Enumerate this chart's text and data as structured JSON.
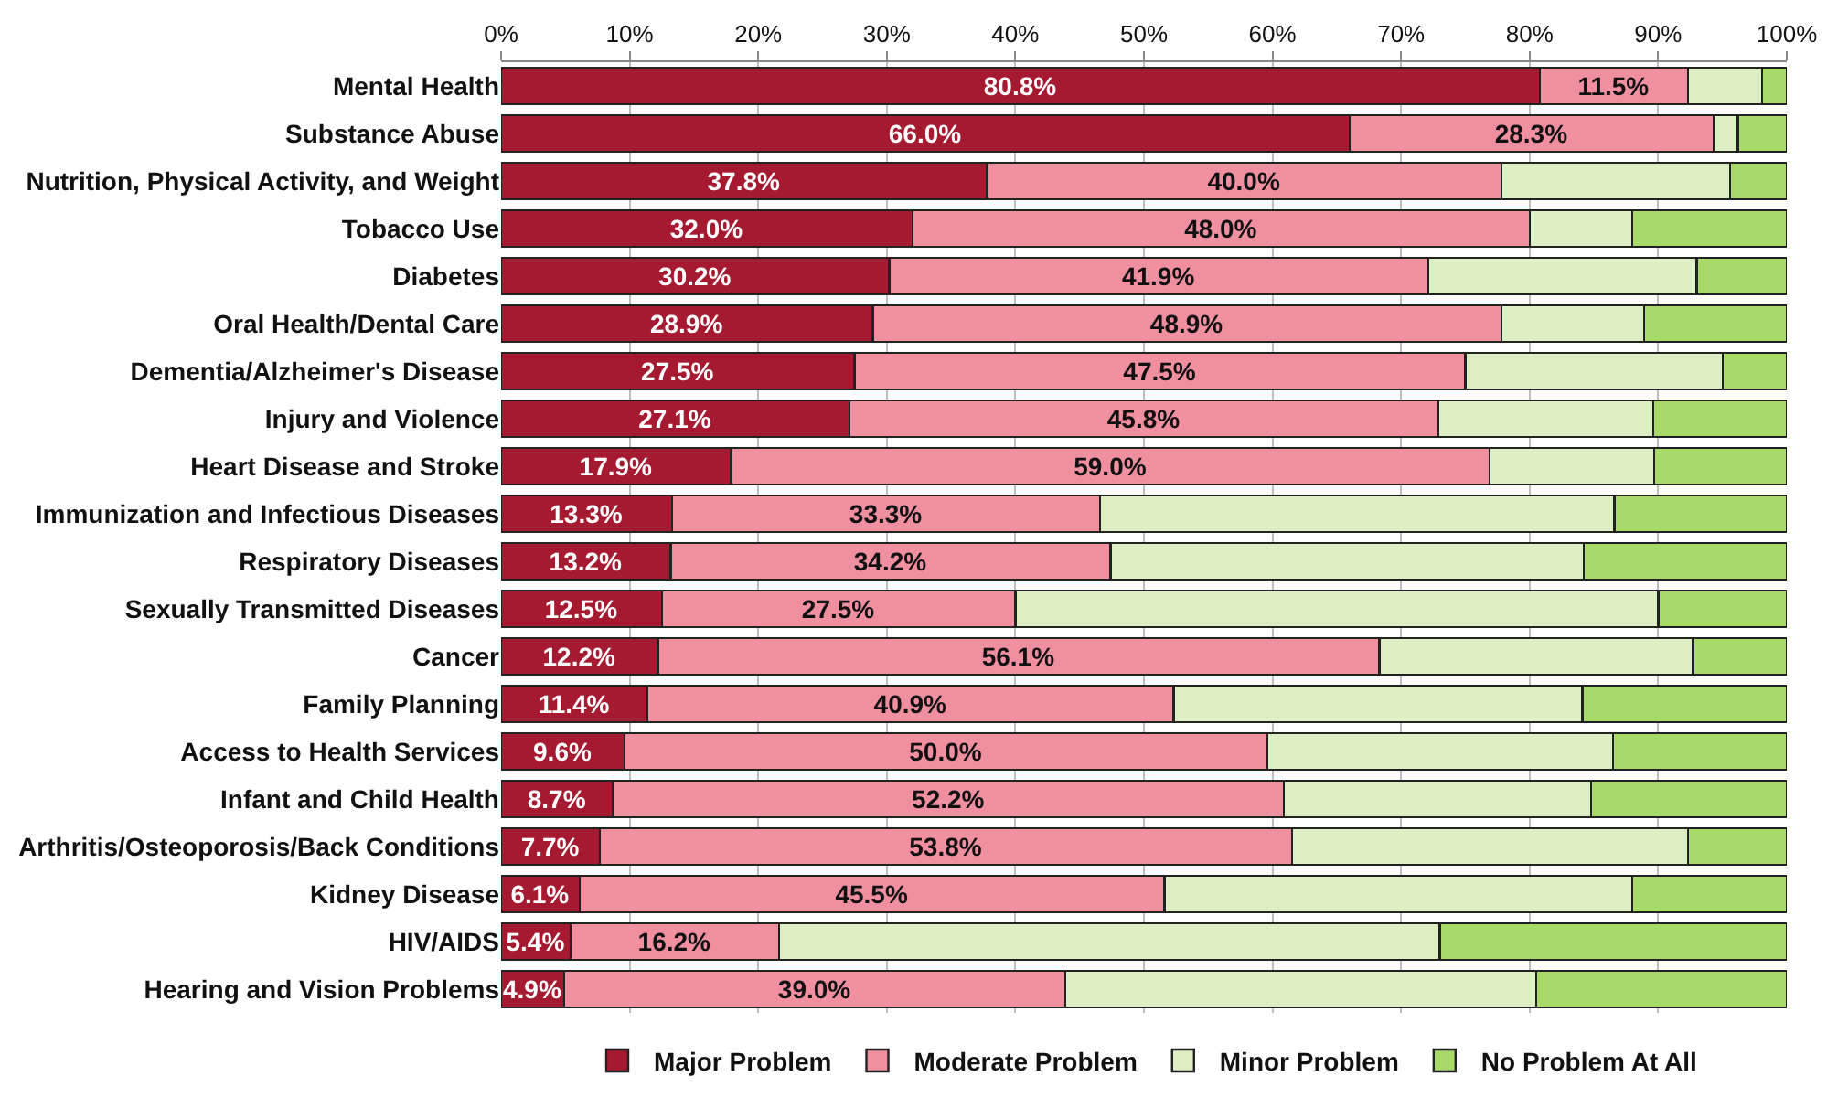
{
  "chart_data": {
    "type": "bar",
    "orientation": "horizontal",
    "stacked": true,
    "categories": [
      "Mental Health",
      "Substance Abuse",
      "Nutrition, Physical Activity, and Weight",
      "Tobacco Use",
      "Diabetes",
      "Oral Health/Dental Care",
      "Dementia/Alzheimer's Disease",
      "Injury and Violence",
      "Heart Disease and Stroke",
      "Immunization and Infectious Diseases",
      "Respiratory Diseases",
      "Sexually Transmitted Diseases",
      "Cancer",
      "Family Planning",
      "Access to Health Services",
      "Infant and Child Health",
      "Arthritis/Osteoporosis/Back Conditions",
      "Kidney Disease",
      "HIV/AIDS",
      "Hearing and Vision Problems"
    ],
    "series": [
      {
        "name": "Major Problem",
        "color": "#a51a30",
        "values": [
          80.8,
          66.0,
          37.8,
          32.0,
          30.2,
          28.9,
          27.5,
          27.1,
          17.9,
          13.3,
          13.2,
          12.5,
          12.2,
          11.4,
          9.6,
          8.7,
          7.7,
          6.1,
          5.4,
          4.9
        ],
        "value_labels": [
          "80.8%",
          "66.0%",
          "37.8%",
          "32.0%",
          "30.2%",
          "28.9%",
          "27.5%",
          "27.1%",
          "17.9%",
          "13.3%",
          "13.2%",
          "12.5%",
          "12.2%",
          "11.4%",
          "9.6%",
          "8.7%",
          "7.7%",
          "6.1%",
          "5.4%",
          "4.9%"
        ]
      },
      {
        "name": "Moderate Problem",
        "color": "#ef8f9f",
        "values": [
          11.5,
          28.3,
          40.0,
          48.0,
          41.9,
          48.9,
          47.5,
          45.8,
          59.0,
          33.3,
          34.2,
          27.5,
          56.1,
          40.9,
          50.0,
          52.2,
          53.8,
          45.5,
          16.2,
          39.0
        ],
        "value_labels": [
          "11.5%",
          "28.3%",
          "40.0%",
          "48.0%",
          "41.9%",
          "48.9%",
          "47.5%",
          "45.8%",
          "59.0%",
          "33.3%",
          "34.2%",
          "27.5%",
          "56.1%",
          "40.9%",
          "50.0%",
          "52.2%",
          "53.8%",
          "45.5%",
          "16.2%",
          "39.0%"
        ]
      },
      {
        "name": "Minor Problem",
        "color": "#dcefc3",
        "values": [
          5.8,
          1.9,
          17.8,
          8.0,
          20.9,
          11.1,
          20.0,
          16.7,
          12.8,
          40.0,
          36.8,
          50.0,
          24.4,
          31.8,
          26.9,
          23.9,
          30.8,
          36.4,
          51.4,
          36.6
        ]
      },
      {
        "name": "No Problem At All",
        "color": "#a8da6a",
        "values": [
          1.9,
          3.8,
          4.4,
          12.0,
          7.0,
          11.1,
          5.0,
          10.4,
          10.3,
          13.4,
          15.8,
          10.0,
          7.3,
          15.9,
          13.5,
          15.2,
          7.7,
          12.0,
          27.0,
          19.5
        ]
      }
    ],
    "xlim": [
      0,
      100
    ],
    "xticks": [
      {
        "value": 0,
        "label": "0%"
      },
      {
        "value": 10,
        "label": "10%"
      },
      {
        "value": 20,
        "label": "20%"
      },
      {
        "value": 30,
        "label": "30%"
      },
      {
        "value": 40,
        "label": "40%"
      },
      {
        "value": 50,
        "label": "50%"
      },
      {
        "value": 60,
        "label": "60%"
      },
      {
        "value": 70,
        "label": "70%"
      },
      {
        "value": 80,
        "label": "80%"
      },
      {
        "value": 90,
        "label": "90%"
      },
      {
        "value": 100,
        "label": "100%"
      }
    ],
    "grid": "x",
    "legend": "bottom"
  }
}
